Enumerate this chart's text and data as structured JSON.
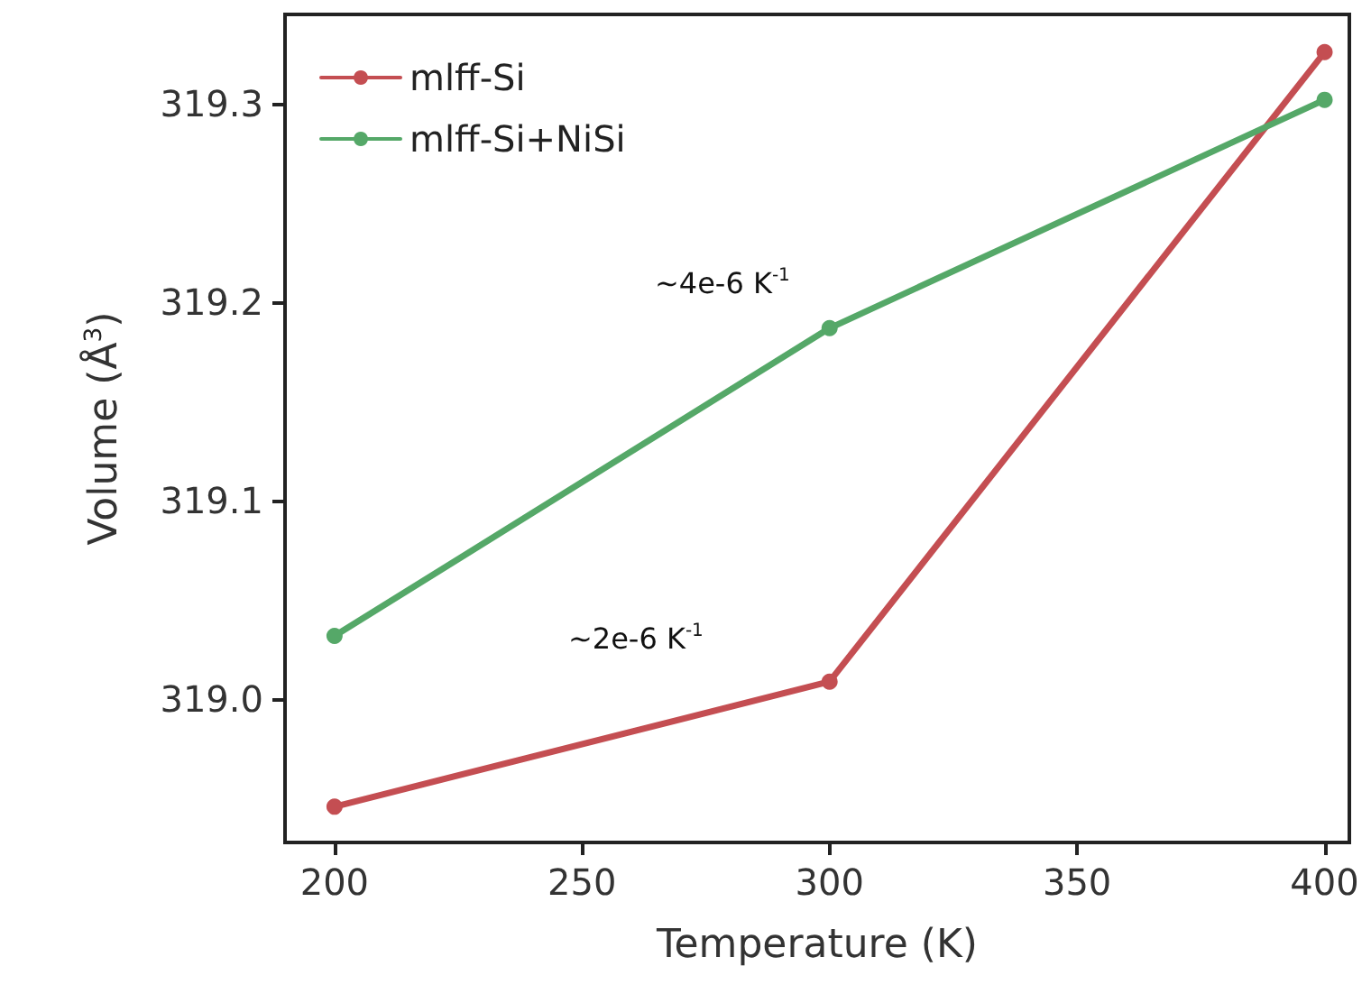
{
  "chart_data": {
    "type": "line",
    "xlabel": "Temperature (K)",
    "ylabel": "Volume (Å$^{3}$)",
    "x": [
      200,
      300,
      400
    ],
    "series": [
      {
        "name": "mlff-Si",
        "color": "#c44e52",
        "values": [
          318.946,
          319.009,
          319.326
        ]
      },
      {
        "name": "mlff-Si+NiSi",
        "color": "#55a868",
        "values": [
          319.032,
          319.187,
          319.302
        ]
      }
    ],
    "xlim": [
      190,
      405
    ],
    "xticks": [
      200,
      250,
      300,
      350,
      400
    ],
    "ylim": [
      318.928,
      319.345
    ],
    "yticks": [
      {
        "value": 319.0,
        "label": "319.0"
      },
      {
        "value": 319.1,
        "label": "319.1"
      },
      {
        "value": 319.2,
        "label": "319.2"
      },
      {
        "value": 319.3,
        "label": "319.3"
      }
    ],
    "annotations": [
      "~4e-6 K$^{-1}$",
      "~2e-6 K$^{-1}$"
    ],
    "grid": false,
    "legend": "top left",
    "marker": "circle",
    "line_style": "solid"
  }
}
